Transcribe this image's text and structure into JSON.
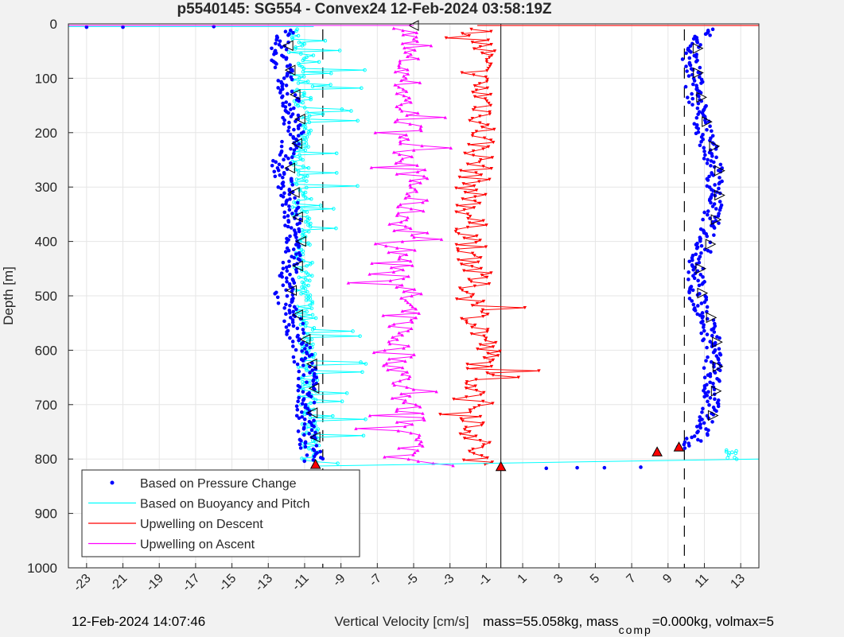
{
  "chart_data": {
    "type": "scatter",
    "title": "p5540145: SG554 - Convex24 12-Feb-2024 03:58:19Z",
    "xlabel": "Vertical Velocity [cm/s]",
    "ylabel": "Depth [m]",
    "xlim": [
      -24,
      14
    ],
    "ylim": [
      0,
      1000
    ],
    "y_reversed": true,
    "grid": true,
    "xticks": [
      -23,
      -21,
      -19,
      -17,
      -15,
      -13,
      -11,
      -9,
      -7,
      -5,
      -3,
      -1,
      1,
      3,
      5,
      7,
      9,
      11,
      13
    ],
    "xtick_labels": [
      "-23",
      "-21",
      "-19",
      "-17",
      "-15",
      "-13",
      "-11",
      "-9",
      "-7",
      "-5",
      "-3",
      "-1",
      "1",
      "3",
      "5",
      "7",
      "9",
      "11",
      "13"
    ],
    "yticks": [
      0,
      100,
      200,
      300,
      400,
      500,
      600,
      700,
      800,
      900,
      1000
    ],
    "ytick_labels": [
      "0",
      "100",
      "200",
      "300",
      "400",
      "500",
      "600",
      "700",
      "800",
      "900",
      "1000"
    ],
    "legend_position": "bottom-left",
    "series": [
      {
        "name": "Based on Pressure Change",
        "color": "#0000ff",
        "marker": "dot",
        "descent": {
          "depth": [
            5,
            50,
            100,
            150,
            200,
            250,
            300,
            350,
            400,
            450,
            500,
            550,
            600,
            650,
            700,
            750,
            800
          ],
          "w": [
            -12,
            -12.4,
            -12.1,
            -11.8,
            -11.5,
            -12.3,
            -12,
            -11.8,
            -11.6,
            -11.8,
            -12.2,
            -11.6,
            -11.2,
            -10.8,
            -11,
            -10.9,
            -10.5
          ]
        },
        "ascent": {
          "depth": [
            5,
            50,
            100,
            150,
            200,
            250,
            300,
            350,
            400,
            450,
            500,
            550,
            600,
            650,
            700,
            750,
            780
          ],
          "w": [
            11.5,
            10.2,
            10.4,
            10.6,
            11,
            11.5,
            11.6,
            11.4,
            11.1,
            10.5,
            10.6,
            11.2,
            11.5,
            11.4,
            11.3,
            11,
            9.8
          ]
        }
      },
      {
        "name": "Based on Buoyancy and Pitch",
        "color": "#00ffff",
        "marker": "circle",
        "descent": {
          "depth": [
            5,
            50,
            100,
            150,
            200,
            250,
            300,
            350,
            400,
            450,
            500,
            550,
            600,
            650,
            700,
            750,
            800
          ],
          "w": [
            -11.3,
            -11.4,
            -11.2,
            -11.1,
            -11.1,
            -11.2,
            -11.3,
            -11.2,
            -11.1,
            -11.1,
            -11.0,
            -10.9,
            -10.9,
            -10.8,
            -10.8,
            -10.7,
            -10.7
          ]
        }
      },
      {
        "name": "Upwelling on Descent",
        "color": "#ff0000",
        "marker": "triangle-down",
        "descent": {
          "depth": [
            10,
            50,
            100,
            150,
            200,
            250,
            300,
            350,
            400,
            450,
            500,
            550,
            600,
            650,
            700,
            750,
            800
          ],
          "w": [
            -1.5,
            -1.2,
            -1.6,
            -1.0,
            -1.2,
            -1.4,
            -1.8,
            -1.9,
            -1.8,
            -1.6,
            -1.8,
            -1.4,
            -1.0,
            -1.3,
            -1.5,
            -1.6,
            -1.5
          ]
        }
      },
      {
        "name": "Upwelling on Ascent",
        "color": "#ff00ff",
        "marker": "triangle-up",
        "ascent": {
          "depth": [
            10,
            50,
            100,
            150,
            200,
            250,
            300,
            350,
            400,
            450,
            500,
            550,
            600,
            650,
            700,
            750,
            800
          ],
          "w": [
            -5.2,
            -5.5,
            -5.4,
            -5.5,
            -5.3,
            -5.2,
            -5.0,
            -5.3,
            -5.8,
            -5.6,
            -5.4,
            -5.6,
            -5.9,
            -5.7,
            -5.4,
            -5.1,
            -5.0
          ]
        }
      }
    ],
    "reference_lines": {
      "solid_x": -0.2,
      "dashed_x": [
        -10.0,
        9.9
      ]
    }
  },
  "footer": {
    "timestamp": "12-Feb-2024 14:07:46",
    "mass_text": "mass=55.058kg, mass",
    "sub_text": "comp",
    "mass_comp_text": "=0.000kg, volmax=5"
  }
}
